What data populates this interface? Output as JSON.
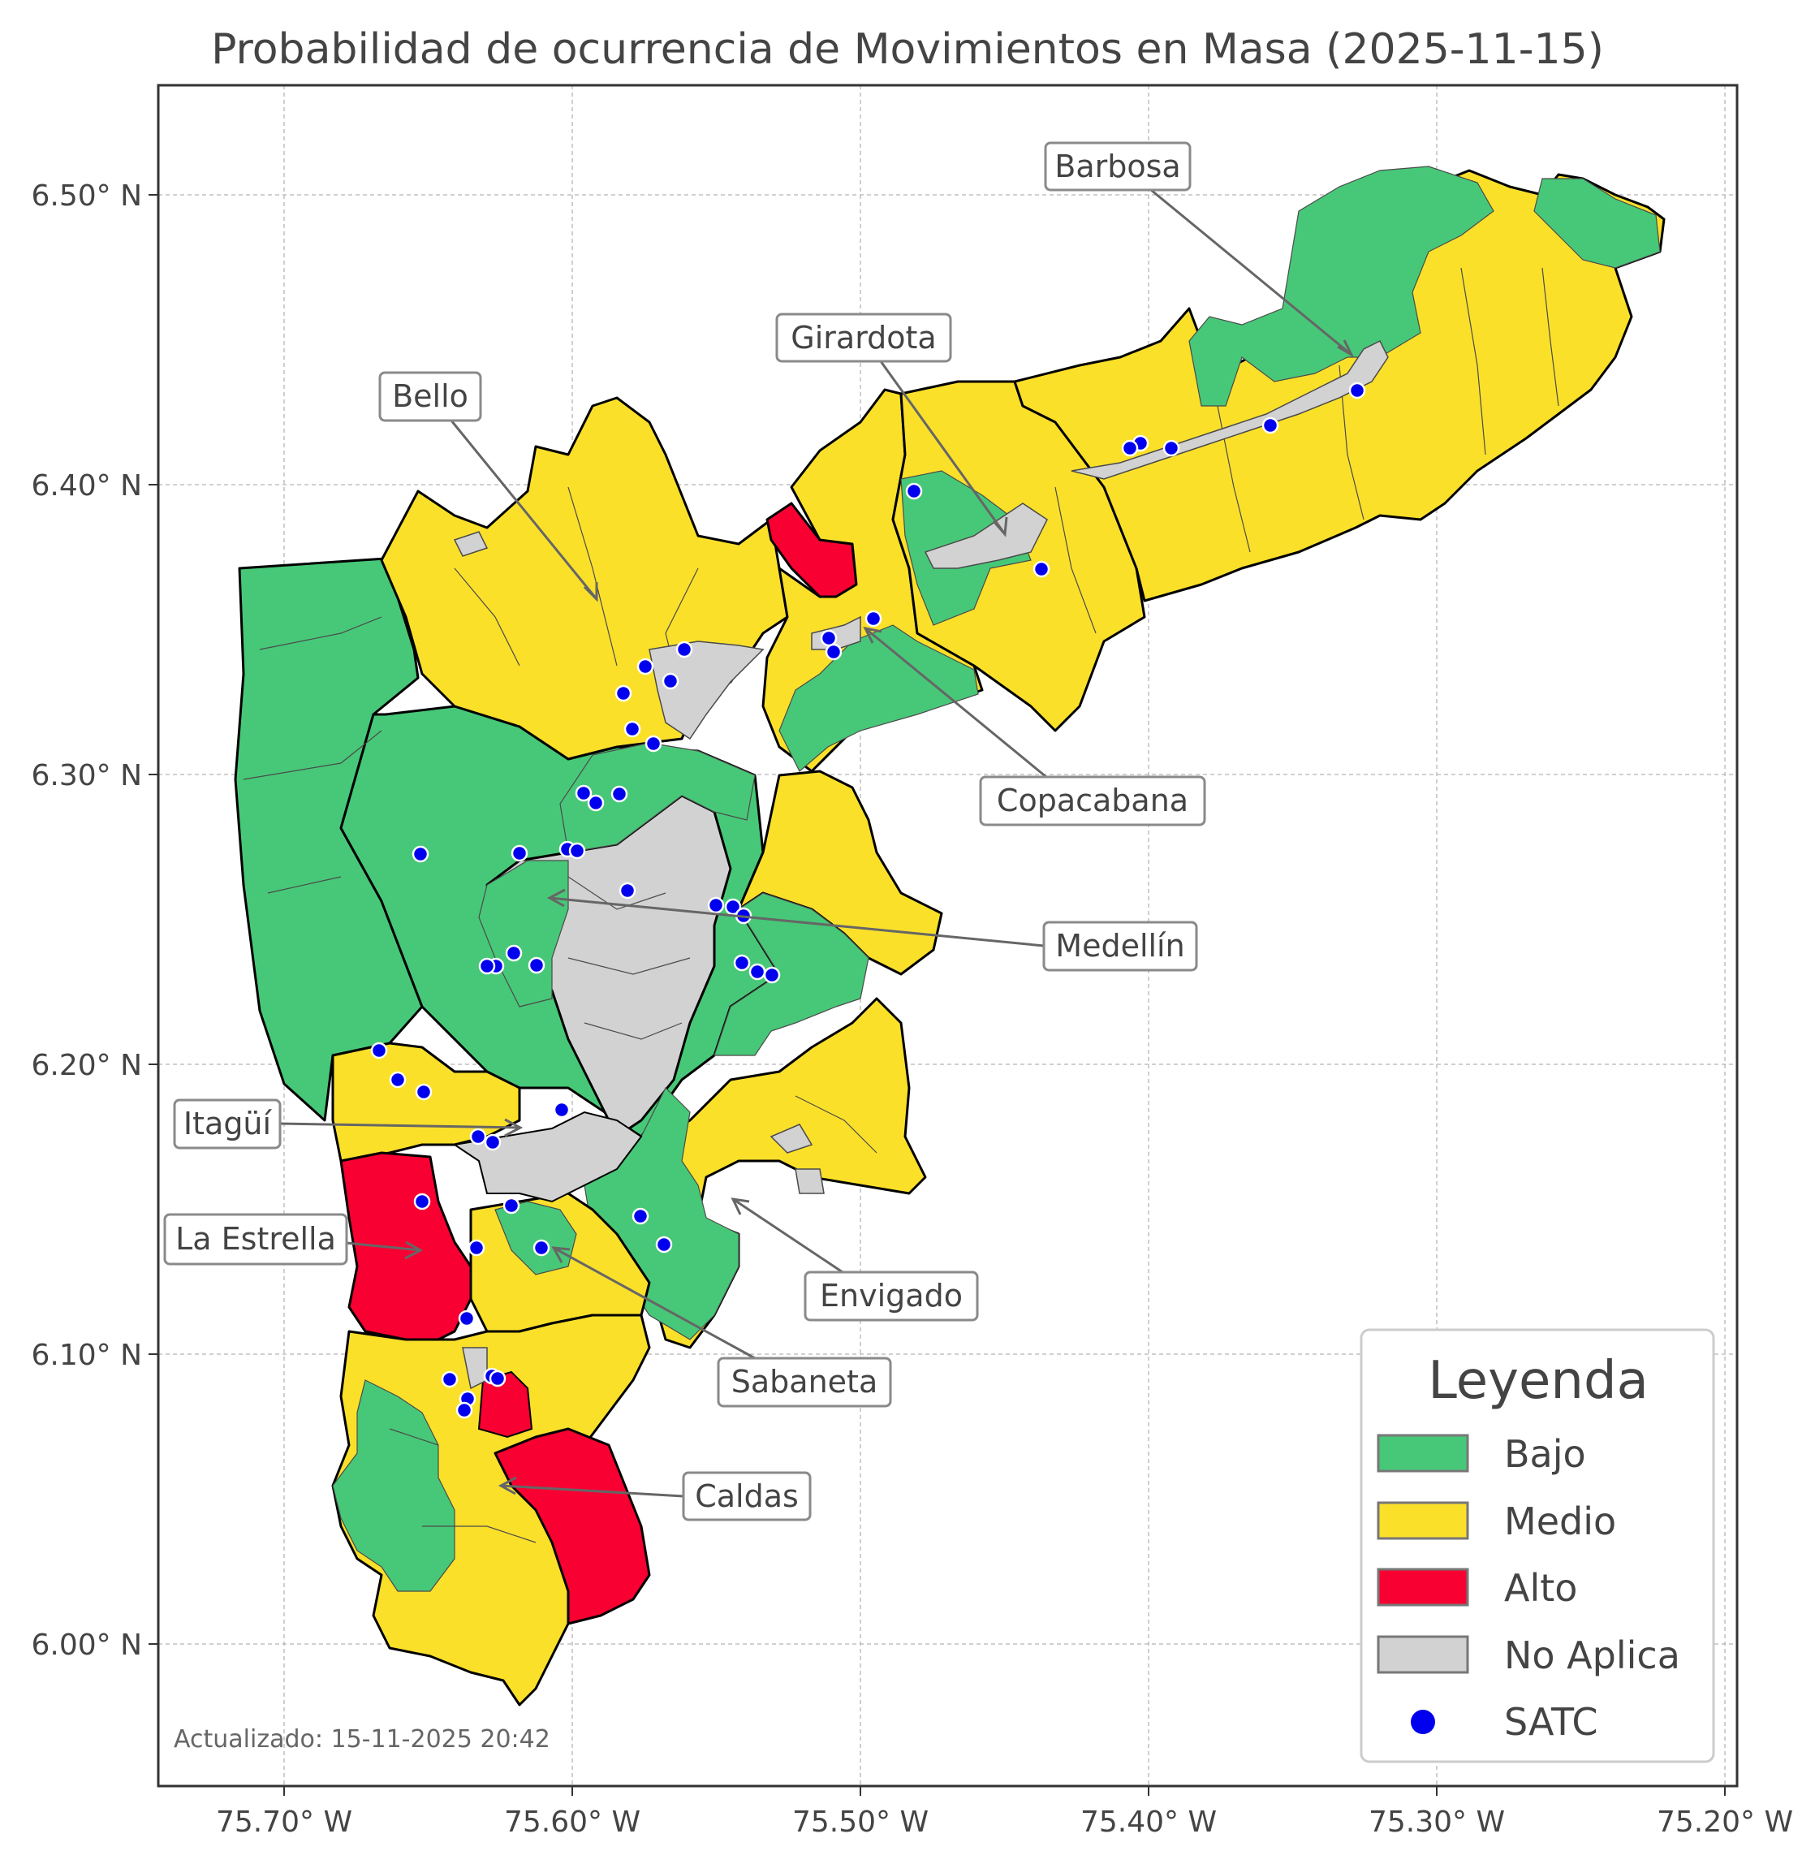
{
  "title": "Probabilidad de ocurrencia de Movimientos en Masa (2025-11-15)",
  "colors": {
    "bajo": "#47c878",
    "medio": "#fbe02a",
    "alto": "#f80032",
    "no_aplica": "#d2d2d2",
    "satc": "#0000ee"
  },
  "axes": {
    "x_ticks": [
      "75.70° W",
      "75.60° W",
      "75.50° W",
      "75.40° W",
      "75.30° W",
      "75.20° W"
    ],
    "y_ticks": [
      "6.50° N",
      "6.40° N",
      "6.30° N",
      "6.20° N",
      "6.10° N",
      "6.00° N"
    ]
  },
  "municipalities": [
    {
      "name": "Barbosa"
    },
    {
      "name": "Girardota"
    },
    {
      "name": "Bello"
    },
    {
      "name": "Copacabana"
    },
    {
      "name": "Medellín"
    },
    {
      "name": "Itagüí"
    },
    {
      "name": "La Estrella"
    },
    {
      "name": "Envigado"
    },
    {
      "name": "Sabaneta"
    },
    {
      "name": "Caldas"
    }
  ],
  "legend": {
    "title": "Leyenda",
    "items": [
      {
        "label": "Bajo",
        "color": "#47c878",
        "kind": "patch"
      },
      {
        "label": "Medio",
        "color": "#fbe02a",
        "kind": "patch"
      },
      {
        "label": "Alto",
        "color": "#f80032",
        "kind": "patch"
      },
      {
        "label": "No Aplica",
        "color": "#d2d2d2",
        "kind": "patch"
      },
      {
        "label": "SATC",
        "color": "#0000ee",
        "kind": "marker"
      }
    ]
  },
  "updated": "Actualizado: 15-11-2025 20:42"
}
